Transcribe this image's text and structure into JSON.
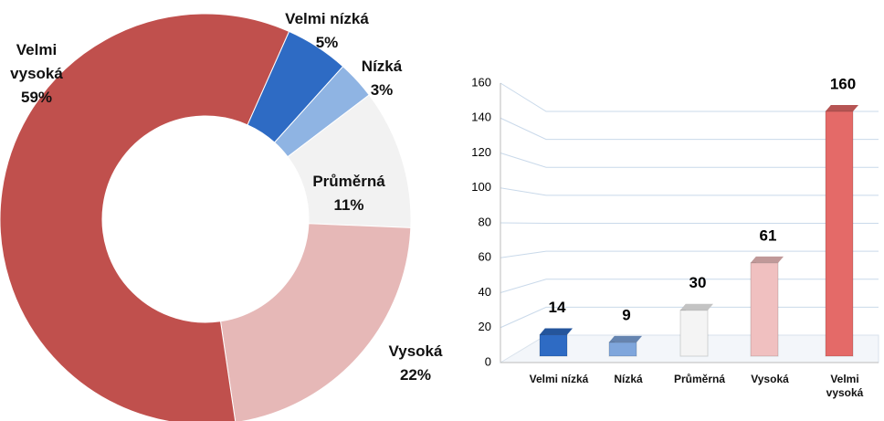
{
  "chart_data": [
    {
      "type": "donut",
      "categories": [
        "Velmi nízká",
        "Nízká",
        "Průměrná",
        "Vysoká",
        "Velmi vysoká"
      ],
      "values": [
        5,
        3,
        11,
        22,
        59
      ],
      "value_labels": [
        "5%",
        "3%",
        "11%",
        "22%",
        "59%"
      ],
      "colors": [
        "#2e6bc4",
        "#8fb4e3",
        "#f2f2f2",
        "#e6b8b7",
        "#c0504d"
      ]
    },
    {
      "type": "bar3d",
      "categories": [
        "Velmi nízká",
        "Nízká",
        "Průměrná",
        "Vysoká",
        "Velmi vysoká"
      ],
      "values": [
        14,
        9,
        30,
        61,
        160
      ],
      "colors": [
        "#2e6bc4",
        "#7fa6dc",
        "#f4f4f4",
        "#f0c0c0",
        "#e46a68"
      ],
      "ylim": [
        0,
        160
      ],
      "yticks": [
        0,
        20,
        40,
        60,
        80,
        100,
        120,
        140,
        160
      ],
      "grid": true
    }
  ]
}
